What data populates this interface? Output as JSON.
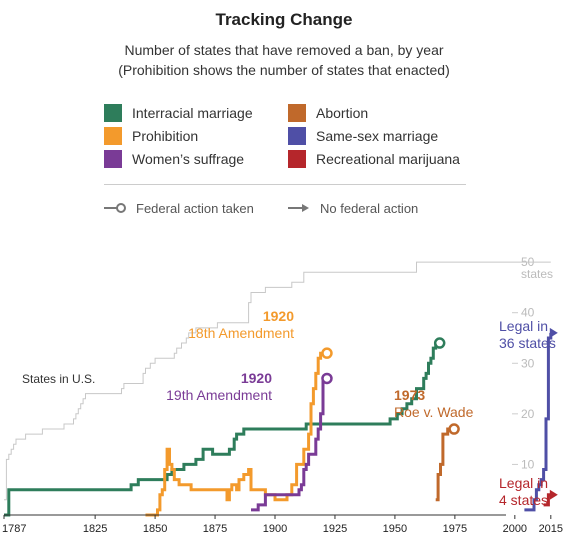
{
  "header": {
    "title": "Tracking Change",
    "subtitle_line1": "Number of states that have removed a ban, by year",
    "subtitle_line2": "(Prohibition shows the number of states that enacted)"
  },
  "legend": {
    "items": [
      {
        "label": "Interracial marriage",
        "color": "#2e7d5b"
      },
      {
        "label": "Prohibition",
        "color": "#f39a2c"
      },
      {
        "label": "Women’s suffrage",
        "color": "#7a3b96"
      },
      {
        "label": "Abortion",
        "color": "#c0692b"
      },
      {
        "label": "Same-sex marriage",
        "color": "#4f4fa6"
      },
      {
        "label": "Recreational marijuana",
        "color": "#b5262b"
      }
    ],
    "key_federal": "Federal action taken",
    "key_no_federal": "No federal action"
  },
  "chart_data": {
    "type": "line",
    "subtype": "step",
    "x_ticks": [
      1787,
      1825,
      1850,
      1875,
      1900,
      1925,
      1950,
      1975,
      2000,
      2015
    ],
    "x_tick_labels": [
      "1787",
      "1825",
      "1850",
      "1875",
      "1900",
      "1925",
      "1950",
      "1975",
      "2000",
      "2015"
    ],
    "y_ticks": [
      10,
      20,
      30,
      40,
      50
    ],
    "y_tick_labels": [
      "10",
      "20",
      "30",
      "40",
      "50"
    ],
    "y_unit_label": "states",
    "xlim": [
      1787,
      2018
    ],
    "ylim": [
      0,
      52
    ],
    "states_in_us_label": "States in U.S.",
    "states_in_us": {
      "x": [
        1787,
        1788,
        1789,
        1790,
        1791,
        1792,
        1796,
        1803,
        1812,
        1816,
        1817,
        1818,
        1819,
        1820,
        1821,
        1836,
        1837,
        1845,
        1846,
        1848,
        1850,
        1858,
        1859,
        1861,
        1863,
        1864,
        1867,
        1876,
        1889,
        1890,
        1896,
        1907,
        1912,
        1959,
        2015
      ],
      "y": [
        3,
        11,
        12,
        13,
        14,
        15,
        16,
        17,
        18,
        19,
        20,
        21,
        22,
        23,
        24,
        25,
        26,
        28,
        29,
        30,
        31,
        32,
        33,
        34,
        35,
        36,
        37,
        38,
        42,
        44,
        45,
        46,
        48,
        50,
        50
      ]
    },
    "series": [
      {
        "name": "Interracial marriage",
        "color": "#2e7d5b",
        "end": "circle",
        "x": [
          1787,
          1789,
          1840,
          1843,
          1855,
          1857,
          1862,
          1867,
          1870,
          1874,
          1881,
          1883,
          1884,
          1887,
          1913,
          1943,
          1948,
          1951,
          1953,
          1955,
          1957,
          1959,
          1962,
          1963,
          1964,
          1965,
          1966,
          1967
        ],
        "y": [
          0,
          5,
          6,
          7,
          8,
          9,
          10,
          11,
          13,
          12,
          13,
          15,
          16,
          17,
          18,
          18,
          19,
          20,
          21,
          22,
          23,
          25,
          27,
          28,
          30,
          31,
          33,
          34
        ]
      },
      {
        "name": "Prohibition",
        "color": "#f39a2c",
        "end": "circle",
        "annotation_bold": "1920",
        "annotation": "18th Amendment",
        "x": [
          1846,
          1851,
          1852,
          1853,
          1854,
          1855,
          1856,
          1857,
          1858,
          1860,
          1865,
          1870,
          1875,
          1880,
          1881,
          1882,
          1884,
          1885,
          1887,
          1889,
          1890,
          1896,
          1900,
          1905,
          1907,
          1909,
          1912,
          1914,
          1915,
          1916,
          1917,
          1918,
          1919,
          1920
        ],
        "y": [
          0,
          1,
          4,
          5,
          9,
          13,
          10,
          9,
          7,
          6,
          5,
          5,
          5,
          3,
          5,
          6,
          5,
          7,
          8,
          9,
          5,
          4,
          3,
          4,
          6,
          10,
          13,
          16,
          22,
          25,
          28,
          31,
          32,
          32
        ]
      },
      {
        "name": "Women’s suffrage",
        "color": "#7a3b96",
        "end": "circle",
        "annotation_bold": "1920",
        "annotation": "19th Amendment",
        "x": [
          1890,
          1893,
          1896,
          1910,
          1911,
          1912,
          1913,
          1914,
          1917,
          1918,
          1919,
          1920
        ],
        "y": [
          1,
          2,
          4,
          5,
          6,
          9,
          10,
          12,
          15,
          17,
          20,
          27
        ]
      },
      {
        "name": "Abortion",
        "color": "#c0692b",
        "end": "circle",
        "annotation_bold": "1973",
        "annotation": "Roe v. Wade",
        "x": [
          1967,
          1968,
          1969,
          1970,
          1971,
          1972,
          1973
        ],
        "y": [
          3,
          8,
          10,
          16,
          16,
          17,
          17
        ]
      },
      {
        "name": "Same-sex marriage",
        "color": "#4f4fa6",
        "end": "arrow",
        "annotation": "Legal in 36 states",
        "x": [
          2004,
          2008,
          2009,
          2010,
          2011,
          2012,
          2013,
          2014,
          2015
        ],
        "y": [
          1,
          3,
          5,
          6,
          7,
          9,
          19,
          35,
          36
        ]
      },
      {
        "name": "Recreational marijuana",
        "color": "#b5262b",
        "end": "arrow",
        "annotation": "Legal in 4 states",
        "x": [
          2012,
          2014,
          2015
        ],
        "y": [
          2,
          4,
          4
        ]
      }
    ]
  }
}
